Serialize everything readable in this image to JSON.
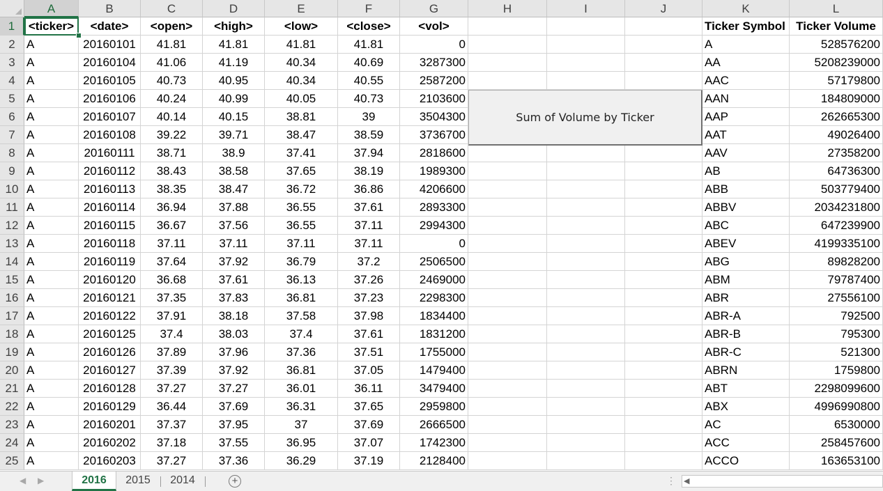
{
  "columns": [
    "A",
    "B",
    "C",
    "D",
    "E",
    "F",
    "G",
    "H",
    "I",
    "J",
    "K",
    "L"
  ],
  "active_cell": "A1",
  "header_row": [
    "<ticker>",
    "<date>",
    "<open>",
    "<high>",
    "<low>",
    "<close>",
    "<vol>"
  ],
  "rows": [
    [
      "A",
      "20160101",
      "41.81",
      "41.81",
      "41.81",
      "41.81",
      "0"
    ],
    [
      "A",
      "20160104",
      "41.06",
      "41.19",
      "40.34",
      "40.69",
      "3287300"
    ],
    [
      "A",
      "20160105",
      "40.73",
      "40.95",
      "40.34",
      "40.55",
      "2587200"
    ],
    [
      "A",
      "20160106",
      "40.24",
      "40.99",
      "40.05",
      "40.73",
      "2103600"
    ],
    [
      "A",
      "20160107",
      "40.14",
      "40.15",
      "38.81",
      "39",
      "3504300"
    ],
    [
      "A",
      "20160108",
      "39.22",
      "39.71",
      "38.47",
      "38.59",
      "3736700"
    ],
    [
      "A",
      "20160111",
      "38.71",
      "38.9",
      "37.41",
      "37.94",
      "2818600"
    ],
    [
      "A",
      "20160112",
      "38.43",
      "38.58",
      "37.65",
      "38.19",
      "1989300"
    ],
    [
      "A",
      "20160113",
      "38.35",
      "38.47",
      "36.72",
      "36.86",
      "4206600"
    ],
    [
      "A",
      "20160114",
      "36.94",
      "37.88",
      "36.55",
      "37.61",
      "2893300"
    ],
    [
      "A",
      "20160115",
      "36.67",
      "37.56",
      "36.55",
      "37.11",
      "2994300"
    ],
    [
      "A",
      "20160118",
      "37.11",
      "37.11",
      "37.11",
      "37.11",
      "0"
    ],
    [
      "A",
      "20160119",
      "37.64",
      "37.92",
      "36.79",
      "37.2",
      "2506500"
    ],
    [
      "A",
      "20160120",
      "36.68",
      "37.61",
      "36.13",
      "37.26",
      "2469000"
    ],
    [
      "A",
      "20160121",
      "37.35",
      "37.83",
      "36.81",
      "37.23",
      "2298300"
    ],
    [
      "A",
      "20160122",
      "37.91",
      "38.18",
      "37.58",
      "37.98",
      "1834400"
    ],
    [
      "A",
      "20160125",
      "37.4",
      "38.03",
      "37.4",
      "37.61",
      "1831200"
    ],
    [
      "A",
      "20160126",
      "37.89",
      "37.96",
      "37.36",
      "37.51",
      "1755000"
    ],
    [
      "A",
      "20160127",
      "37.39",
      "37.92",
      "36.81",
      "37.05",
      "1479400"
    ],
    [
      "A",
      "20160128",
      "37.27",
      "37.27",
      "36.01",
      "36.11",
      "3479400"
    ],
    [
      "A",
      "20160129",
      "36.44",
      "37.69",
      "36.31",
      "37.65",
      "2959800"
    ],
    [
      "A",
      "20160201",
      "37.37",
      "37.95",
      "37",
      "37.69",
      "2666500"
    ],
    [
      "A",
      "20160202",
      "37.18",
      "37.55",
      "36.95",
      "37.07",
      "1742300"
    ],
    [
      "A",
      "20160203",
      "37.27",
      "37.36",
      "36.29",
      "37.19",
      "2128400"
    ]
  ],
  "summary_header": [
    "Ticker Symbol",
    "Ticker Volume"
  ],
  "summary_rows": [
    [
      "A",
      "528576200"
    ],
    [
      "AA",
      "5208239000"
    ],
    [
      "AAC",
      "57179800"
    ],
    [
      "AAN",
      "184809000"
    ],
    [
      "AAP",
      "262665300"
    ],
    [
      "AAT",
      "49026400"
    ],
    [
      "AAV",
      "27358200"
    ],
    [
      "AB",
      "64736300"
    ],
    [
      "ABB",
      "503779400"
    ],
    [
      "ABBV",
      "2034231800"
    ],
    [
      "ABC",
      "647239900"
    ],
    [
      "ABEV",
      "4199335100"
    ],
    [
      "ABG",
      "89828200"
    ],
    [
      "ABM",
      "79787400"
    ],
    [
      "ABR",
      "27556100"
    ],
    [
      "ABR-A",
      "792500"
    ],
    [
      "ABR-B",
      "795300"
    ],
    [
      "ABR-C",
      "521300"
    ],
    [
      "ABRN",
      "1759800"
    ],
    [
      "ABT",
      "2298099600"
    ],
    [
      "ABX",
      "4996990800"
    ],
    [
      "AC",
      "6530000"
    ],
    [
      "ACC",
      "258457600"
    ],
    [
      "ACCO",
      "163653100"
    ]
  ],
  "macro_button": {
    "label": "Sum of Volume by Ticker"
  },
  "sheet_tabs": [
    "2016",
    "2015",
    "2014"
  ],
  "active_tab": "2016",
  "colors": {
    "accent": "#217346",
    "header_bg": "#e6e6e6"
  }
}
